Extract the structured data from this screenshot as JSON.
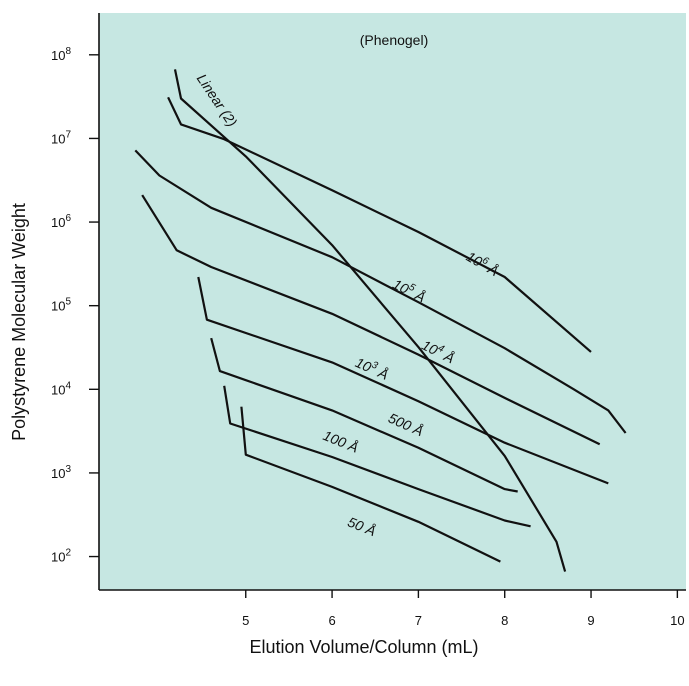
{
  "chart_data": {
    "type": "line",
    "title": "",
    "subtitle": "(Phenogel)",
    "xlabel": "Elution Volume/Column (mL)",
    "ylabel": "Polystyrene Molecular Weight",
    "xlim": [
      3.3,
      10.1
    ],
    "ylim_log10": [
      1.6,
      8.5
    ],
    "y_scale": "log",
    "x_ticks": [
      5,
      6,
      7,
      8,
      9,
      10
    ],
    "x_tick_labels": [
      "5",
      "6",
      "7",
      "8",
      "9",
      "10"
    ],
    "y_ticks": [
      100,
      1000,
      10000,
      100000,
      1000000,
      10000000,
      100000000
    ],
    "y_tick_base": "10",
    "y_tick_exponents": [
      "2",
      "3",
      "4",
      "5",
      "6",
      "7",
      "8"
    ],
    "grid": false,
    "background_color": "#c6e7e2",
    "line_color": "#111111",
    "series": [
      {
        "name": "10⁶ Å",
        "label_base": "10",
        "label_exp": "6",
        "label_unit": "Å",
        "points": [
          [
            4.1,
            31000000
          ],
          [
            4.25,
            14700000
          ],
          [
            4.75,
            9800000
          ],
          [
            6.0,
            2400000
          ],
          [
            7.0,
            760000
          ],
          [
            8.0,
            220000
          ],
          [
            9.0,
            28000
          ]
        ]
      },
      {
        "name": "10⁵ Å",
        "label_base": "10",
        "label_exp": "5",
        "label_unit": "Å",
        "points": [
          [
            3.72,
            7200000
          ],
          [
            4.0,
            3600000
          ],
          [
            4.6,
            1480000
          ],
          [
            6.0,
            380000
          ],
          [
            7.0,
            110000
          ],
          [
            8.0,
            31000
          ],
          [
            8.8,
            10000
          ],
          [
            9.2,
            5600
          ],
          [
            9.4,
            3000
          ]
        ]
      },
      {
        "name": "10⁴ Å",
        "label_base": "10",
        "label_exp": "4",
        "label_unit": "Å",
        "points": [
          [
            3.8,
            2100000
          ],
          [
            4.2,
            460000
          ],
          [
            4.6,
            290000
          ],
          [
            6.0,
            80000
          ],
          [
            7.0,
            26000
          ],
          [
            8.0,
            7900
          ],
          [
            9.1,
            2200
          ]
        ]
      },
      {
        "name": "10³ Å",
        "label_base": "10",
        "label_exp": "3",
        "label_unit": "Å",
        "points": [
          [
            4.45,
            220000
          ],
          [
            4.55,
            68000
          ],
          [
            6.0,
            21000
          ],
          [
            7.0,
            7200
          ],
          [
            8.0,
            2300
          ],
          [
            9.2,
            750
          ]
        ]
      },
      {
        "name": "500 Å",
        "label": "500 Å",
        "points": [
          [
            4.6,
            41000
          ],
          [
            4.7,
            16500
          ],
          [
            6.0,
            5600
          ],
          [
            7.0,
            2000
          ],
          [
            8.0,
            640
          ],
          [
            8.15,
            600
          ]
        ]
      },
      {
        "name": "100 Å",
        "label": "100 Å",
        "points": [
          [
            4.75,
            11000
          ],
          [
            4.82,
            3900
          ],
          [
            6.0,
            1550
          ],
          [
            7.0,
            640
          ],
          [
            8.0,
            270
          ],
          [
            8.3,
            230
          ]
        ]
      },
      {
        "name": "50 Å",
        "label": "50 Å",
        "points": [
          [
            4.95,
            6200
          ],
          [
            5.0,
            1650
          ],
          [
            6.0,
            680
          ],
          [
            7.0,
            260
          ],
          [
            7.95,
            87
          ]
        ]
      },
      {
        "name": "Linear (2)",
        "label": "Linear (2)",
        "points": [
          [
            4.18,
            67000000
          ],
          [
            4.25,
            30000000
          ],
          [
            5.0,
            6100000
          ],
          [
            6.0,
            530000
          ],
          [
            7.0,
            32000
          ],
          [
            8.0,
            1600
          ],
          [
            8.6,
            150
          ],
          [
            8.7,
            66
          ]
        ]
      }
    ]
  }
}
